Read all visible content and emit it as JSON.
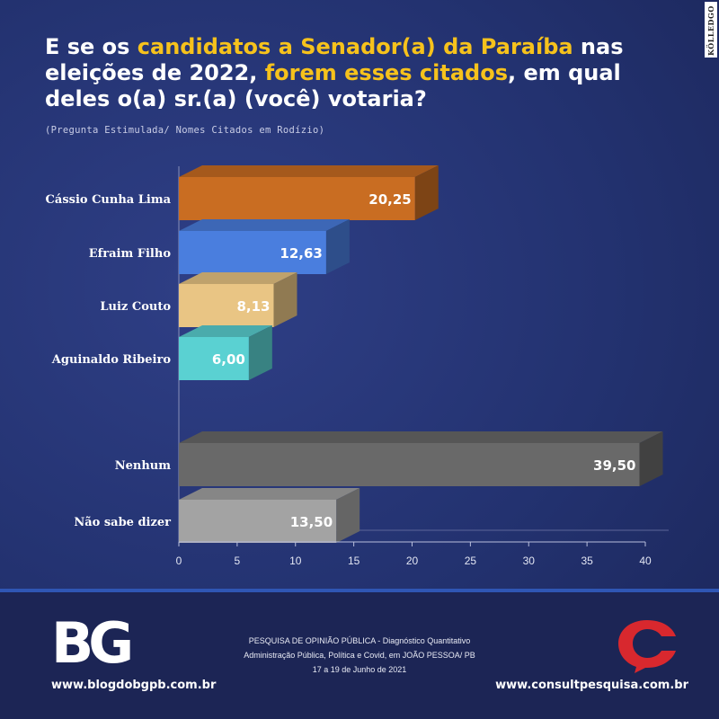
{
  "title": {
    "part1": "E se os ",
    "highlight1": "candidatos a Senador(a) da Paraíba",
    "part2": " nas eleições de 2022, ",
    "highlight2": "forem esses citados",
    "part3": ", em qual deles o(a) sr.(a) (você) votaria?"
  },
  "subtitle": "(Pregunta Estimulada/ Nomes Citados em Rodízio)",
  "watermark": "KÖLLEDGO",
  "colors": {
    "title_highlight": "#f6c21c",
    "background": "#233270",
    "consult_red": "#d8282e"
  },
  "chart_data": {
    "type": "bar",
    "orientation": "horizontal",
    "categories": [
      "Cássio Cunha Lima",
      "Efraim Filho",
      "Luiz Couto",
      "Aguinaldo Ribeiro",
      "Nenhum",
      "Não sabe dizer"
    ],
    "values": [
      20.25,
      12.63,
      8.13,
      6.0,
      39.5,
      13.5
    ],
    "value_labels": [
      "20,25",
      "12,63",
      "8,13",
      "6,00",
      "39,50",
      "13,50"
    ],
    "bar_colors": [
      "#c96d22",
      "#4a7ede",
      "#e9c584",
      "#5ad1d2",
      "#696969",
      "#a3a3a3"
    ],
    "xlim": [
      0,
      40
    ],
    "xticks": [
      0,
      5,
      10,
      15,
      20,
      25,
      30,
      35,
      40
    ],
    "xlabel": "",
    "ylabel": "",
    "grid": false,
    "legend": "none"
  },
  "footer": {
    "logo_text": "BG",
    "left_url": "www.blogdobgpb.com.br",
    "right_url": "www.consultpesquisa.com.br",
    "center_lines": [
      "PESQUISA DE OPINIÃO PÚBLICA - Diagnóstico Quantitativo",
      "Administração Pública, Política e Covid, em JOÃO PESSOA/ PB",
      "17 a 19 de Junho de 2021"
    ]
  }
}
